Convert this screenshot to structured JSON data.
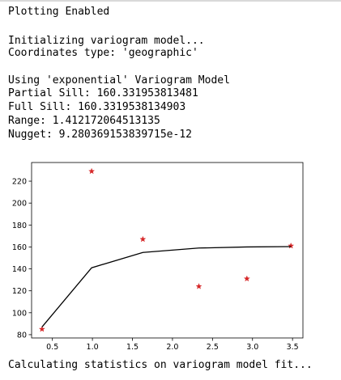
{
  "output": {
    "before": [
      "Plotting Enabled",
      "",
      "Initializing variogram model...",
      "Coordinates type: 'geographic'",
      "",
      "Using 'exponential' Variogram Model",
      "Partial Sill: 160.331953813481",
      "Full Sill: 160.3319538134903",
      "Range: 1.412172064513135",
      "Nugget: 9.280369153839715e-12"
    ],
    "after": "Calculating statistics on variogram model fit..."
  },
  "chart_data": {
    "type": "scatter",
    "title": "",
    "xlabel": "",
    "ylabel": "",
    "xlim": [
      0.24,
      3.63
    ],
    "ylim": [
      77,
      237
    ],
    "xticks": [
      "0.5",
      "1.0",
      "1.5",
      "2.0",
      "2.5",
      "3.0",
      "3.5"
    ],
    "yticks": [
      "80",
      "100",
      "120",
      "140",
      "160",
      "180",
      "200",
      "220"
    ],
    "grid": false,
    "series": [
      {
        "kind": "scatter",
        "marker": "star",
        "color": "#d62728",
        "x": [
          0.37,
          0.99,
          1.63,
          2.33,
          2.93,
          3.48
        ],
        "y": [
          85,
          229,
          167,
          124,
          131,
          161
        ]
      },
      {
        "kind": "line",
        "color": "#000000",
        "x": [
          0.37,
          0.99,
          1.63,
          2.33,
          2.93,
          3.48
        ],
        "y": [
          87,
          141,
          155,
          159,
          160,
          160.3
        ]
      }
    ]
  }
}
